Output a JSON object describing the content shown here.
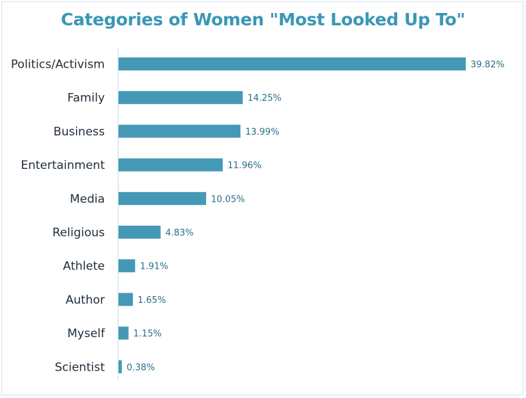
{
  "chart_data": {
    "type": "bar",
    "orientation": "horizontal",
    "title": "Categories of Women \"Most Looked Up To\"",
    "xlabel": "",
    "ylabel": "",
    "categories": [
      "Politics/Activism",
      "Family",
      "Business",
      "Entertainment",
      "Media",
      "Religious",
      "Athlete",
      "Author",
      "Myself",
      "Scientist"
    ],
    "values": [
      39.82,
      14.25,
      13.99,
      11.96,
      10.05,
      4.83,
      1.91,
      1.65,
      1.15,
      0.38
    ],
    "data_labels": [
      "39.82%",
      "14.25%",
      "13.99%",
      "11.96%",
      "10.05%",
      "4.83%",
      "1.91%",
      "1.65%",
      "1.15%",
      "0.38%"
    ],
    "xlim": [
      0,
      40
    ],
    "grid": false,
    "legend": "none",
    "colors": {
      "bar": "#4599b6",
      "title": "#3a97b5",
      "label": "#1f2d3a",
      "value_label": "#2a6f88",
      "axis": "#d4e5ee"
    }
  }
}
